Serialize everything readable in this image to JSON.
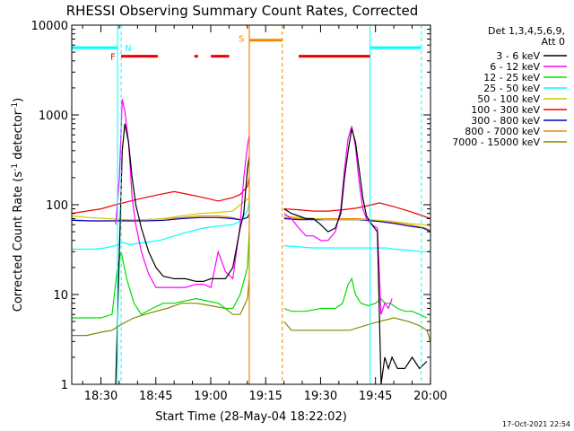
{
  "chart_data": {
    "type": "line",
    "title": "RHESSI Observing Summary Count Rates, Corrected",
    "xlabel": "Start Time (28-May-04 18:22:02)",
    "ylabel_main": "Corrected Count Rate (s",
    "ylabel_sup1": "-1",
    "ylabel_mid": " detector",
    "ylabel_sup2": "-1",
    "ylabel_end": ")",
    "x_unit": "minutes after 18:22:02",
    "xlim": [
      0,
      98
    ],
    "ylim": [
      1,
      10000
    ],
    "yscale": "log",
    "x_ticks": [
      {
        "value": 7.97,
        "label": "18:30"
      },
      {
        "value": 22.97,
        "label": "18:45"
      },
      {
        "value": 37.97,
        "label": "19:00"
      },
      {
        "value": 52.97,
        "label": "19:15"
      },
      {
        "value": 67.97,
        "label": "19:30"
      },
      {
        "value": 82.97,
        "label": "19:45"
      },
      {
        "value": 97.97,
        "label": "20:00"
      }
    ],
    "y_ticks": [
      {
        "value": 1,
        "label": "1"
      },
      {
        "value": 10,
        "label": "10"
      },
      {
        "value": 100,
        "label": "100"
      },
      {
        "value": 1000,
        "label": "1000"
      },
      {
        "value": 10000,
        "label": "10000"
      }
    ],
    "legend_header": [
      "Det 1,3,4,5,6,9,",
      "Att 0"
    ],
    "series": [
      {
        "name": "3 - 6 keV",
        "color": "#000000",
        "x": [
          12,
          13,
          13.8,
          14.5,
          15.5,
          16.5,
          17.5,
          19,
          21,
          23,
          25,
          28,
          31,
          34,
          36,
          38,
          40,
          42,
          44,
          46,
          47,
          48,
          48.5,
          58,
          60,
          62,
          64,
          66,
          68,
          70,
          72,
          73.5,
          74.5,
          75.5,
          76.5,
          77.5,
          78.5,
          79.5,
          80.5,
          82,
          83.5,
          84.5,
          85.5,
          86.5,
          87.5,
          89,
          91,
          93,
          95,
          97
        ],
        "y": [
          1,
          30,
          400,
          800,
          500,
          200,
          100,
          55,
          30,
          20,
          16,
          15,
          15,
          14,
          14,
          15,
          15,
          15,
          20,
          55,
          80,
          250,
          350,
          90,
          80,
          75,
          70,
          70,
          60,
          50,
          55,
          80,
          200,
          400,
          700,
          500,
          250,
          120,
          75,
          60,
          50,
          1,
          2,
          1.5,
          2,
          1.5,
          1.5,
          2,
          1.5,
          1.8
        ]
      },
      {
        "name": "6 - 12 keV",
        "color": "#ff00ff",
        "x": [
          12,
          13,
          13.8,
          14.5,
          15.5,
          16.5,
          17.5,
          19,
          21,
          23,
          25,
          28,
          31,
          34,
          36,
          38,
          40,
          42,
          44,
          46,
          47,
          48,
          48.5,
          58,
          60,
          62,
          64,
          66,
          68,
          70,
          72,
          73.5,
          74.5,
          75.5,
          76.5,
          77.5,
          78.5,
          79.5,
          80.5,
          82,
          83.5,
          84.5,
          85.5,
          86.5,
          87.5
        ],
        "y": [
          60,
          200,
          1500,
          1100,
          500,
          120,
          60,
          30,
          17,
          12,
          12,
          12,
          12,
          13,
          13,
          12,
          30,
          18,
          15,
          60,
          200,
          450,
          600,
          80,
          70,
          55,
          45,
          45,
          40,
          40,
          50,
          90,
          250,
          550,
          750,
          450,
          180,
          90,
          70,
          60,
          55,
          6,
          8,
          7,
          9
        ]
      },
      {
        "name": "12 - 25 keV",
        "color": "#00dd00",
        "x": [
          0,
          4,
          8,
          11,
          12.5,
          13.5,
          15,
          17,
          19,
          22,
          25,
          28,
          31,
          34,
          37,
          40,
          42,
          44,
          46,
          48,
          48.5,
          58,
          60,
          64,
          68,
          72,
          74,
          75.5,
          76.5,
          77.5,
          79,
          81,
          83,
          84.5,
          85.5,
          87,
          89,
          91,
          93,
          95,
          97
        ],
        "y": [
          5.5,
          5.5,
          5.5,
          6,
          20,
          30,
          15,
          8,
          6,
          7,
          8,
          8,
          8.5,
          9,
          8.5,
          8,
          7,
          7,
          10,
          20,
          50,
          7,
          6.5,
          6.5,
          7,
          7,
          8,
          13,
          15,
          10,
          8,
          7.5,
          8,
          9,
          8,
          8,
          7,
          6.5,
          6.5,
          6,
          5.5
        ]
      },
      {
        "name": "25 - 50 keV",
        "color": "#00ffff",
        "x": [
          0,
          3,
          6,
          9,
          12,
          14,
          16,
          20,
          24,
          28,
          32,
          36,
          40,
          44,
          46,
          48,
          48.5,
          58,
          62,
          66,
          70,
          74,
          78,
          82,
          83,
          84,
          86,
          88,
          92,
          96,
          98
        ],
        "y": [
          32,
          32,
          32,
          33,
          35,
          38,
          36,
          38,
          40,
          45,
          50,
          55,
          58,
          60,
          65,
          85,
          110,
          35,
          34,
          33,
          33,
          33,
          33,
          33,
          33,
          33,
          33,
          32,
          31,
          30,
          30
        ]
      },
      {
        "name": "50 - 100 keV",
        "color": "#cccc00",
        "x": [
          0,
          5,
          10,
          15,
          20,
          25,
          30,
          35,
          40,
          44,
          46,
          48,
          48.5,
          58,
          62,
          66,
          70,
          74,
          78,
          82,
          84,
          88,
          92,
          96,
          98
        ],
        "y": [
          75,
          72,
          70,
          68,
          68,
          70,
          75,
          80,
          82,
          85,
          100,
          115,
          120,
          75,
          72,
          70,
          68,
          68,
          68,
          68,
          67,
          65,
          62,
          60,
          58
        ]
      },
      {
        "name": "100 - 300 keV",
        "color": "#ee0000",
        "x": [
          0,
          4,
          8,
          12,
          16,
          20,
          24,
          28,
          32,
          36,
          40,
          44,
          46,
          48,
          48.5,
          58,
          62,
          66,
          70,
          74,
          78,
          82,
          84,
          88,
          92,
          96,
          98
        ],
        "y": [
          80,
          85,
          90,
          100,
          110,
          120,
          130,
          140,
          130,
          120,
          110,
          120,
          130,
          160,
          200,
          90,
          88,
          85,
          85,
          88,
          92,
          100,
          105,
          95,
          85,
          75,
          70
        ]
      },
      {
        "name": "300 - 800 keV",
        "color": "#0000cc",
        "x": [
          0,
          5,
          10,
          15,
          20,
          25,
          30,
          35,
          40,
          44,
          46,
          48,
          48.5,
          58,
          62,
          66,
          70,
          74,
          78,
          82,
          84,
          88,
          92,
          96,
          98
        ],
        "y": [
          67,
          66,
          66,
          66,
          66,
          67,
          70,
          72,
          72,
          70,
          68,
          72,
          80,
          70,
          68,
          68,
          68,
          68,
          68,
          66,
          65,
          62,
          58,
          55,
          50
        ]
      },
      {
        "name": "800 - 7000 keV",
        "color": "#ee8800",
        "x": [
          0,
          5,
          10,
          15,
          20,
          25,
          30,
          35,
          40,
          44,
          46,
          48,
          48.5,
          58,
          62,
          66,
          70,
          74,
          78,
          82,
          84,
          88,
          92,
          96,
          98
        ],
        "y": [
          68,
          66,
          66,
          67,
          68,
          70,
          72,
          75,
          75,
          72,
          68,
          72,
          80,
          72,
          70,
          70,
          70,
          70,
          70,
          68,
          66,
          63,
          60,
          56,
          52
        ]
      },
      {
        "name": "7000 - 15000 keV",
        "color": "#888800",
        "x": [
          0,
          4,
          8,
          11,
          13,
          15,
          17,
          20,
          23,
          26,
          30,
          34,
          38,
          42,
          44,
          46,
          48,
          48.5,
          58,
          60,
          64,
          68,
          72,
          76,
          80,
          84,
          88,
          92,
          95,
          97,
          98
        ],
        "y": [
          3.5,
          3.5,
          3.8,
          4,
          4.5,
          5,
          5.5,
          6,
          6.5,
          7,
          8,
          8,
          7.5,
          7,
          6,
          6,
          9,
          15,
          5,
          4,
          4,
          4,
          4,
          4,
          4.5,
          5,
          5.5,
          5,
          4.5,
          4,
          3
        ]
      }
    ],
    "flags": {
      "night_lines": [
        13.5,
        95.5
      ],
      "night_bars": [
        [
          0,
          12.5
        ],
        [
          81.5,
          95.5
        ]
      ],
      "night_level": 5600,
      "night_label": "N",
      "flare_label": "F",
      "flare_segments": [
        [
          13.5,
          23.5
        ],
        [
          33.5,
          34.5
        ],
        [
          38,
          43
        ],
        [
          62,
          81.5
        ]
      ],
      "flare_level": 4500,
      "saa_label": "S",
      "saa_lines": [
        48.5,
        57.5
      ],
      "saa_bar": [
        48.5,
        57.5
      ],
      "saa_level": 6800
    }
  },
  "footer": {
    "date_stamp": "17-Oct-2021 22:54"
  }
}
